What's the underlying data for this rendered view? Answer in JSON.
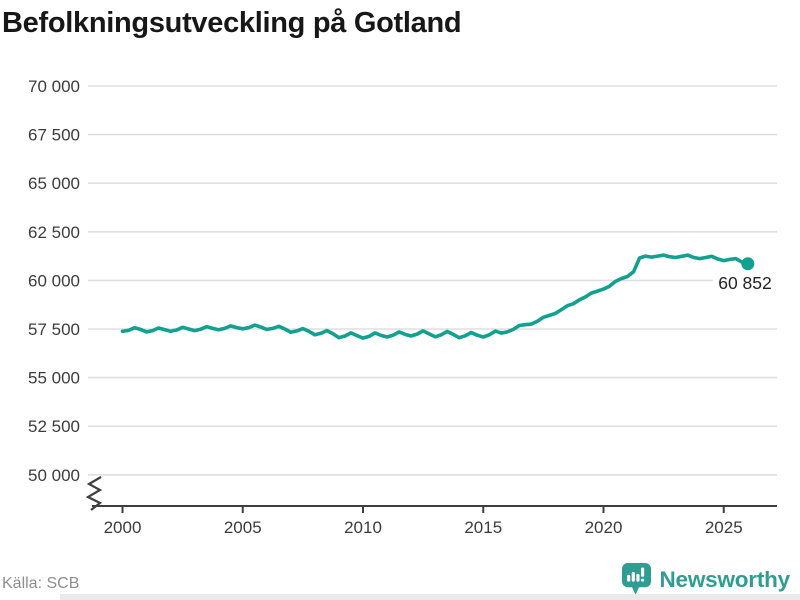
{
  "title": "Befolkningsutveckling på Gotland",
  "source_label": "Källa: SCB",
  "branding": {
    "wordmark": "Newsworthy",
    "logo_icon": "newsworthy-pin-barchart"
  },
  "colors": {
    "line": "#12a091",
    "brand": "#2f9e92",
    "grid": "#dfdfdf",
    "axis": "#3f3f3f",
    "tick_text": "#3c3c3c",
    "title_text": "#171717",
    "annotation_text": "#222222",
    "source_text": "#8e8e8e"
  },
  "chart_data": {
    "type": "line",
    "title": "Befolkningsutveckling på Gotland",
    "series_name": "Befolkning på Gotland",
    "grid": "horizontal",
    "legend": "none",
    "axis_break_bottom_left": true,
    "ylim": [
      50000,
      71000
    ],
    "xlim": [
      2000,
      2026
    ],
    "ytick_labels": [
      "70 000",
      "67 500",
      "65 000",
      "62 500",
      "60 000",
      "57 500",
      "55 000",
      "52 500",
      "50 000"
    ],
    "ytick_values": [
      70000,
      67500,
      65000,
      62500,
      60000,
      57500,
      55000,
      52500,
      50000
    ],
    "xticks": [
      2000,
      2005,
      2010,
      2015,
      2020,
      2025
    ],
    "last_value_label": "60 852",
    "last_value": 60852,
    "x": [
      2000,
      2000.25,
      2000.5,
      2000.75,
      2001,
      2001.25,
      2001.5,
      2001.75,
      2002,
      2002.25,
      2002.5,
      2002.75,
      2003,
      2003.25,
      2003.5,
      2003.75,
      2004,
      2004.25,
      2004.5,
      2004.75,
      2005,
      2005.25,
      2005.5,
      2005.75,
      2006,
      2006.25,
      2006.5,
      2006.75,
      2007,
      2007.25,
      2007.5,
      2007.75,
      2008,
      2008.25,
      2008.5,
      2008.75,
      2009,
      2009.25,
      2009.5,
      2009.75,
      2010,
      2010.25,
      2010.5,
      2010.75,
      2011,
      2011.25,
      2011.5,
      2011.75,
      2012,
      2012.25,
      2012.5,
      2012.75,
      2013,
      2013.25,
      2013.5,
      2013.75,
      2014,
      2014.25,
      2014.5,
      2014.75,
      2015,
      2015.25,
      2015.5,
      2015.75,
      2016,
      2016.25,
      2016.5,
      2016.75,
      2017,
      2017.25,
      2017.5,
      2017.75,
      2018,
      2018.25,
      2018.5,
      2018.75,
      2019,
      2019.25,
      2019.5,
      2019.75,
      2020,
      2020.25,
      2020.5,
      2020.75,
      2021,
      2021.25,
      2021.5,
      2021.75,
      2022,
      2022.25,
      2022.5,
      2022.75,
      2023,
      2023.25,
      2023.5,
      2023.75,
      2024,
      2024.25,
      2024.5,
      2024.75,
      2025,
      2025.25,
      2025.5,
      2025.75,
      2026
    ],
    "values": [
      57380,
      57430,
      57560,
      57480,
      57350,
      57420,
      57550,
      57470,
      57380,
      57450,
      57590,
      57500,
      57420,
      57490,
      57620,
      57530,
      57460,
      57530,
      57660,
      57570,
      57510,
      57570,
      57700,
      57600,
      57480,
      57530,
      57640,
      57500,
      57330,
      57400,
      57520,
      57380,
      57200,
      57280,
      57420,
      57260,
      57050,
      57140,
      57300,
      57160,
      57030,
      57120,
      57300,
      57170,
      57090,
      57180,
      57350,
      57220,
      57140,
      57240,
      57400,
      57250,
      57100,
      57200,
      57370,
      57220,
      57050,
      57150,
      57320,
      57180,
      57090,
      57200,
      57390,
      57290,
      57350,
      57480,
      57680,
      57720,
      57750,
      57900,
      58100,
      58200,
      58300,
      58500,
      58700,
      58800,
      59000,
      59150,
      59350,
      59450,
      59550,
      59700,
      59950,
      60100,
      60200,
      60450,
      61150,
      61250,
      61200,
      61250,
      61300,
      61220,
      61180,
      61240,
      61300,
      61180,
      61120,
      61180,
      61240,
      61100,
      61020,
      61080,
      61120,
      60950,
      60852
    ]
  }
}
